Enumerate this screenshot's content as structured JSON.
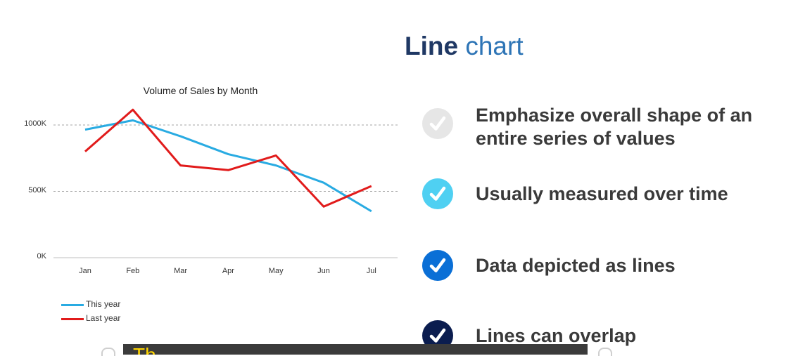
{
  "slide": {
    "title_strong": "Line",
    "title_light": "chart",
    "bullets": [
      {
        "text": "Emphasize overall shape of an entire series of values",
        "color": "#e6e6e6",
        "icon": "check-circle-icon"
      },
      {
        "text": "Usually measured over time",
        "color": "#4fd0f2",
        "icon": "check-circle-icon"
      },
      {
        "text": "Data depicted as lines",
        "color": "#0a6fd6",
        "icon": "check-circle-icon"
      },
      {
        "text": "Lines can overlap",
        "color": "#0b1d4f",
        "icon": "check-circle-icon"
      }
    ],
    "caption_text": "Th                       "
  },
  "chart_data": {
    "type": "line",
    "title": "Volume of Sales by Month",
    "categories": [
      "Jan",
      "Feb",
      "Mar",
      "Apr",
      "May",
      "Jun",
      "Jul"
    ],
    "ylim": [
      0,
      1000
    ],
    "yticks": [
      0,
      500,
      1000
    ],
    "ytick_labels": [
      "0K",
      "500K",
      "1000K"
    ],
    "grid": "horizontal dashed",
    "legend_position": "bottom-left",
    "series": [
      {
        "name": "This year",
        "color": "#29abe2",
        "values": [
          965,
          1035,
          915,
          780,
          695,
          565,
          350
        ]
      },
      {
        "name": "Last year",
        "color": "#e11b1b",
        "values": [
          800,
          1115,
          695,
          660,
          770,
          385,
          540
        ]
      }
    ]
  }
}
